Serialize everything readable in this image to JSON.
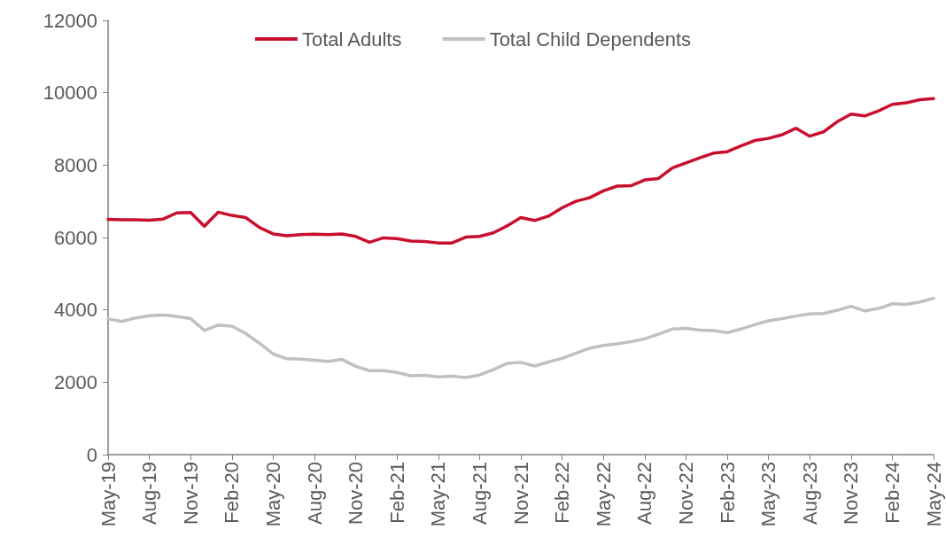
{
  "chart_data": {
    "type": "line",
    "categories": [
      "May-19",
      null,
      null,
      "Aug-19",
      null,
      null,
      "Nov-19",
      null,
      null,
      "Feb-20",
      null,
      null,
      "May-20",
      null,
      null,
      "Aug-20",
      null,
      null,
      "Nov-20",
      null,
      null,
      "Feb-21",
      null,
      null,
      "May-21",
      null,
      null,
      "Aug-21",
      null,
      null,
      "Nov-21",
      null,
      null,
      "Feb-22",
      null,
      null,
      "May-22",
      null,
      null,
      "Aug-22",
      null,
      null,
      "Nov-22",
      null,
      null,
      "Feb-23",
      null,
      null,
      "May-23",
      null,
      null,
      "Aug-23",
      null,
      null,
      "Nov-23",
      null,
      null,
      "Feb-24",
      null,
      null,
      "May-24"
    ],
    "series": [
      {
        "name": "Total Adults",
        "color": "#c8102e",
        "values": [
          6500,
          6490,
          6490,
          6480,
          6510,
          6680,
          6690,
          6310,
          6700,
          6610,
          6550,
          6280,
          6100,
          6050,
          6080,
          6090,
          6080,
          6100,
          6030,
          5870,
          5990,
          5970,
          5900,
          5890,
          5850,
          5850,
          6010,
          6030,
          6130,
          6320,
          6550,
          6470,
          6590,
          6820,
          7000,
          7100,
          7290,
          7420,
          7430,
          7590,
          7630,
          7920,
          8060,
          8200,
          8330,
          8370,
          8530,
          8680,
          8740,
          8840,
          9020,
          8800,
          8920,
          9200,
          9410,
          9360,
          9500,
          9680,
          9720,
          9810,
          9840
        ]
      },
      {
        "name": "Total Child Dependents",
        "color": "#c0c0c0",
        "values": [
          3750,
          3680,
          3780,
          3840,
          3860,
          3820,
          3760,
          3430,
          3580,
          3550,
          3350,
          3080,
          2780,
          2650,
          2640,
          2610,
          2580,
          2630,
          2440,
          2320,
          2320,
          2270,
          2180,
          2190,
          2150,
          2170,
          2130,
          2200,
          2350,
          2520,
          2550,
          2450,
          2560,
          2660,
          2800,
          2940,
          3020,
          3060,
          3120,
          3200,
          3330,
          3470,
          3490,
          3440,
          3430,
          3370,
          3470,
          3590,
          3700,
          3760,
          3830,
          3890,
          3900,
          3990,
          4100,
          3970,
          4040,
          4170,
          4150,
          4220,
          4320
        ]
      }
    ],
    "ylim": [
      0,
      12000
    ],
    "yticks": [
      0,
      2000,
      4000,
      6000,
      8000,
      10000,
      12000
    ],
    "grid": false,
    "legend": "top",
    "marker": "none",
    "line_style": "solid"
  }
}
